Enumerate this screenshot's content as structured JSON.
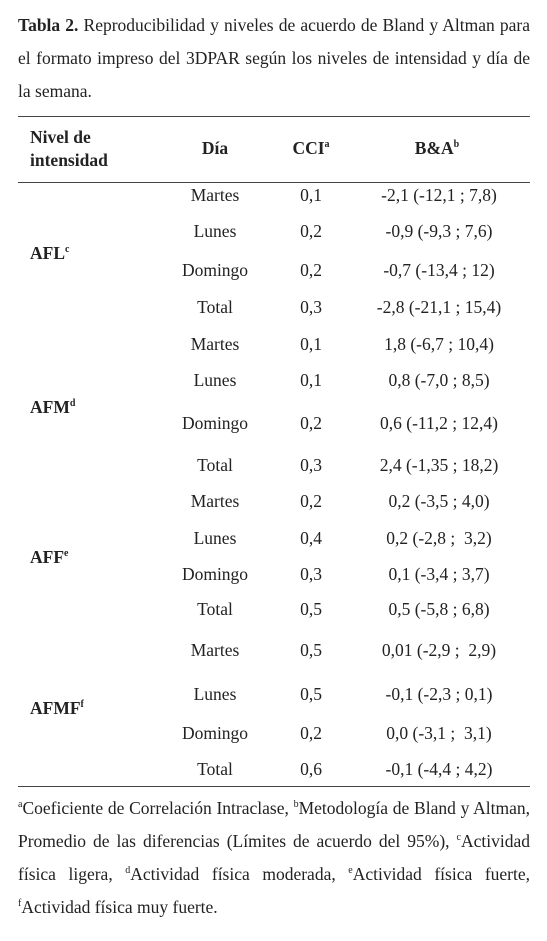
{
  "caption": {
    "label": "Tabla 2.",
    "text": "Reproducibilidad y niveles de acuerdo de Bland y Altman para el formato impreso del 3DPAR según los niveles de intensidad y día de la semana."
  },
  "table": {
    "headers": [
      {
        "text": "Nivel de intensidad"
      },
      {
        "text": "Día"
      },
      {
        "text": "CCI",
        "sup": "a"
      },
      {
        "text": "B&A",
        "sup": "b"
      }
    ],
    "groups": [
      {
        "name": "AFL",
        "sup": "c",
        "rows": [
          [
            "Martes",
            "0,1",
            "-2,1 (-12,1 ; 7,8)"
          ],
          [
            "Lunes",
            "0,2",
            "-0,9 (-9,3 ; 7,6)"
          ],
          [
            "Domingo",
            "0,2",
            "-0,7 (-13,4 ; 12)"
          ],
          [
            "Total",
            "0,3",
            "-2,8 (-21,1 ; 15,4)"
          ]
        ]
      },
      {
        "name": "AFM",
        "sup": "d",
        "rows": [
          [
            "Martes",
            "0,1",
            "1,8 (-6,7 ; 10,4)"
          ],
          [
            "Lunes",
            "0,1",
            "0,8 (-7,0 ; 8,5)"
          ],
          [
            "Domingo",
            "0,2",
            "0,6 (-11,2 ; 12,4)"
          ],
          [
            "Total",
            "0,3",
            "2,4 (-1,35 ; 18,2)"
          ]
        ]
      },
      {
        "name": "AFF",
        "sup": "e",
        "rows": [
          [
            "Martes",
            "0,2",
            "0,2 (-3,5 ; 4,0)"
          ],
          [
            "Lunes",
            "0,4",
            "0,2 (-2,8 ;  3,2)"
          ],
          [
            "Domingo",
            "0,3",
            "0,1 (-3,4 ; 3,7)"
          ],
          [
            "Total",
            "0,5",
            "0,5 (-5,8 ; 6,8)"
          ]
        ]
      },
      {
        "name": "AFMF",
        "sup": "f",
        "rows": [
          [
            "Martes",
            "0,5",
            "0,01 (-2,9 ;  2,9)"
          ],
          [
            "Lunes",
            "0,5",
            "-0,1 (-2,3 ; 0,1)"
          ],
          [
            "Domingo",
            "0,2",
            "0,0 (-3,1 ;  3,1)"
          ],
          [
            "Total",
            "0,6",
            "-0,1 (-4,4 ; 4,2)"
          ]
        ]
      }
    ]
  },
  "footnote": [
    {
      "sup": "a",
      "text": "Coeficiente de Correlación Intraclase, "
    },
    {
      "sup": "b",
      "text": "Metodología de Bland y Altman, Promedio de las diferencias (Límites de acuerdo del 95%), "
    },
    {
      "sup": "c",
      "text": "Actividad física ligera, "
    },
    {
      "sup": "d",
      "text": "Actividad física moderada, "
    },
    {
      "sup": "e",
      "text": "Actividad física fuerte, "
    },
    {
      "sup": "f",
      "text": "Actividad física muy fuerte."
    }
  ]
}
